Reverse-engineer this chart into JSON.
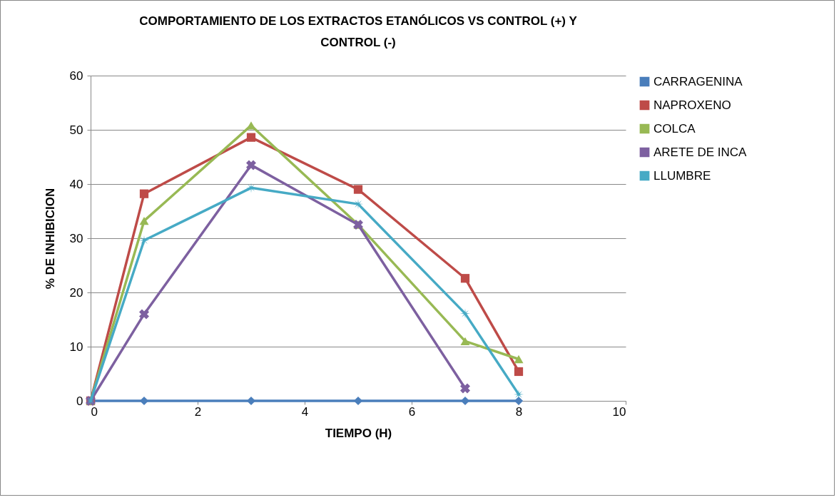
{
  "chart_data": {
    "type": "line",
    "title": "COMPORTAMIENTO DE LOS EXTRACTOS ETANÓLICOS VS CONTROL (+) Y CONTROL (-)",
    "xlabel": "TIEMPO (H)",
    "ylabel": "% DE INHIBICION",
    "x": [
      0,
      1,
      3,
      5,
      7,
      8
    ],
    "xlim": [
      0,
      10
    ],
    "xticks": [
      0,
      2,
      4,
      6,
      8,
      10
    ],
    "ylim": [
      0,
      60
    ],
    "yticks": [
      0,
      10,
      20,
      30,
      40,
      50,
      60
    ],
    "grid": "y",
    "legend": "right",
    "series": [
      {
        "name": "CARRAGENINA",
        "color": "#4a7ebb",
        "marker": "diamond",
        "values": [
          0,
          0,
          0,
          0,
          0,
          0
        ]
      },
      {
        "name": "NAPROXENO",
        "color": "#be4b48",
        "marker": "square",
        "values": [
          0,
          38.2,
          48.6,
          39,
          22.6,
          5.4
        ]
      },
      {
        "name": "COLCA",
        "color": "#98b954",
        "marker": "triangle",
        "values": [
          0,
          33.2,
          50.8,
          32.5,
          11,
          7.7
        ]
      },
      {
        "name": "ARETE DE INCA",
        "color": "#7d60a0",
        "marker": "cross",
        "values": [
          0,
          16,
          43.5,
          32.5,
          2.3,
          null
        ]
      },
      {
        "name": "LLUMBRE",
        "color": "#46aac5",
        "marker": "star",
        "values": [
          0,
          29.6,
          39.3,
          36.3,
          16.1,
          1.2
        ]
      }
    ]
  }
}
